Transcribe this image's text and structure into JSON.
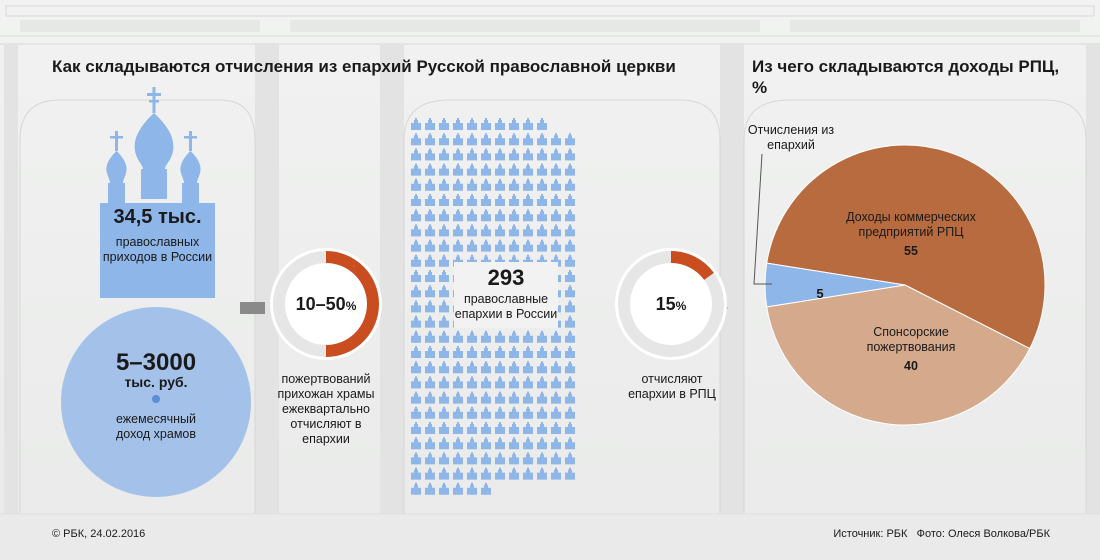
{
  "header": {
    "left_title": "Как складываются отчисления из епархий Русской православной церкви",
    "right_title": "Из чего складываются доходы РПЦ,",
    "right_unit": "%"
  },
  "parishes": {
    "value": "34,5 тыс.",
    "label": "православных приходов в России"
  },
  "temple_income": {
    "value": "5–3000",
    "unit": "тыс. руб.",
    "label": "ежемесячный доход храмов"
  },
  "donation_share": {
    "value": "10–50",
    "unit": "%",
    "label": "пожертвований прихожан храмы ежеквартально отчисляют в епархии",
    "fraction_min": 0.1,
    "fraction_max": 0.5
  },
  "eparchies": {
    "value": "293",
    "label": "православные епархии в России"
  },
  "eparchy_share": {
    "value": "15",
    "unit": "%",
    "label": "отчисляют епархии в РПЦ",
    "fraction": 0.15
  },
  "chart_data": {
    "type": "pie",
    "unit": "%",
    "slices": [
      {
        "label": "Доходы коммерческих предприятий РПЦ",
        "value": 55,
        "color": "#b86b3f"
      },
      {
        "label": "Спонсорские пожертвования",
        "value": 40,
        "color": "#d4a98c"
      },
      {
        "label": "Отчисления из епархий",
        "value": 5,
        "color": "#8fb6e8"
      }
    ]
  },
  "colors": {
    "accent": "#c94d1f",
    "blue": "#8fb6e8",
    "ring_bg": "#e6e6e6",
    "arrow": "#8a8a8a"
  },
  "footer": {
    "copyright": "© РБК, 24.02.2016",
    "source": "Источник: РБК   Фото: Олеся Волкова/РБК"
  }
}
